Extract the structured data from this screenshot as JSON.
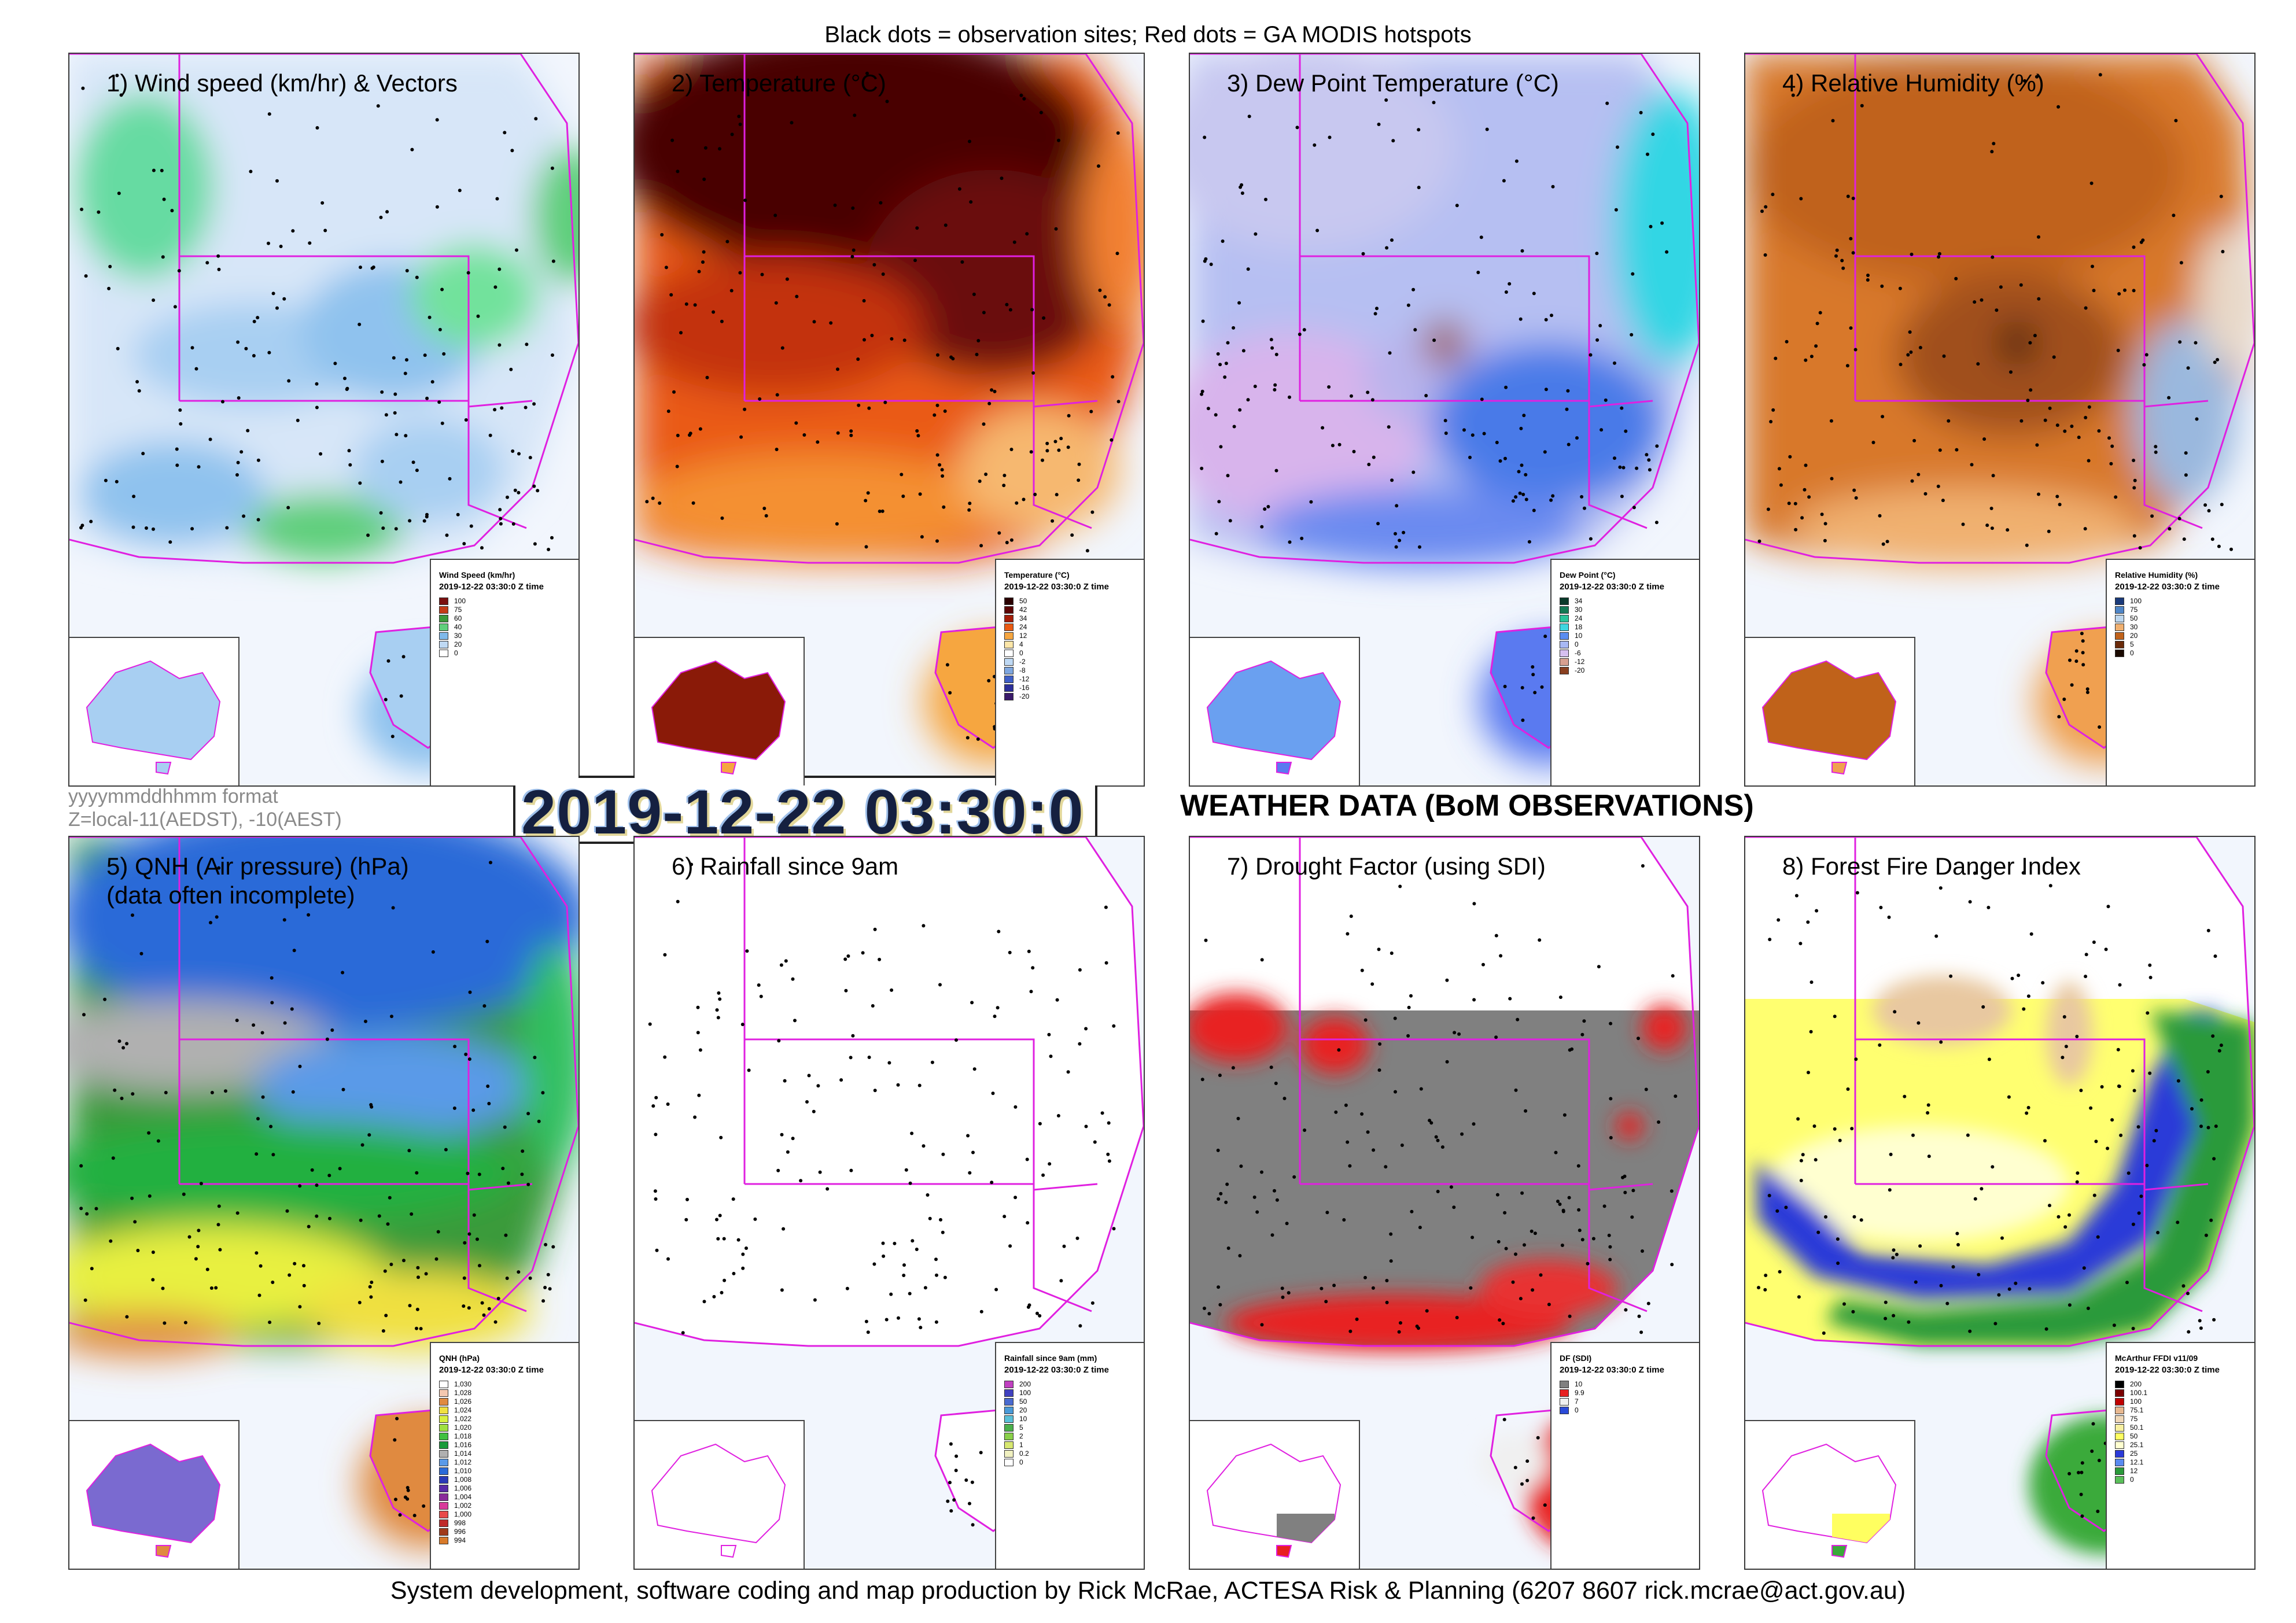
{
  "header": {
    "caption": "Black dots = observation sites; Red dots = GA MODIS hotspots"
  },
  "footer": {
    "credit": "System development, software coding and map production by Rick McRae, ACTESA Risk & Planning (6207 8607 rick.mcrae@act.gov.au)"
  },
  "datetime": {
    "value": "2019-12-22 03:30:0",
    "format_note": "yyyymmddhhmm format",
    "zone_note": "Z=local-11(AEDST), -10(AEST)"
  },
  "main_title": "WEATHER DATA (BoM OBSERVATIONS)",
  "colors": {
    "state_border": "#e020e0",
    "coast": "#e020e0",
    "site_dot": "#000000",
    "hotspot_dot": "#e00000"
  },
  "panels": [
    {
      "id": "wind",
      "title": "1) Wind speed (km/hr) & Vectors",
      "legend": {
        "title": "Wind Speed (km/hr)",
        "time": "2019-12-22 03:30:0 Z time",
        "items": [
          {
            "label": "100",
            "color": "#7a1010"
          },
          {
            "label": "75",
            "color": "#c43b18"
          },
          {
            "label": "60",
            "color": "#3a9a3a"
          },
          {
            "label": "40",
            "color": "#5fcf7c"
          },
          {
            "label": "30",
            "color": "#7fb9ea"
          },
          {
            "label": "20",
            "color": "#bfd9f4"
          },
          {
            "label": "0",
            "color": "#ffffff"
          }
        ]
      }
    },
    {
      "id": "temperature",
      "title": "2) Temperature (°C)",
      "legend": {
        "title": "Temperature (°C)",
        "time": "2019-12-22 03:30:0 Z time",
        "items": [
          {
            "label": "50",
            "color": "#2a0000"
          },
          {
            "label": "42",
            "color": "#5c0505"
          },
          {
            "label": "34",
            "color": "#a51d08"
          },
          {
            "label": "24",
            "color": "#ea5a12"
          },
          {
            "label": "12",
            "color": "#f6a640"
          },
          {
            "label": "4",
            "color": "#fde6a8"
          },
          {
            "label": "0",
            "color": "#ffffff"
          },
          {
            "label": "-2",
            "color": "#bfd9f4"
          },
          {
            "label": "-8",
            "color": "#7fa7e0"
          },
          {
            "label": "-12",
            "color": "#3f5fc8"
          },
          {
            "label": "-16",
            "color": "#2c2f9a"
          },
          {
            "label": "-20",
            "color": "#3a1a6a"
          }
        ]
      }
    },
    {
      "id": "dewpoint",
      "title": "3) Dew Point Temperature (°C)",
      "legend": {
        "title": "Dew Point (°C)",
        "time": "2019-12-22 03:30:0 Z time",
        "items": [
          {
            "label": "34",
            "color": "#0a3a2a"
          },
          {
            "label": "30",
            "color": "#127a54"
          },
          {
            "label": "24",
            "color": "#28c49a"
          },
          {
            "label": "18",
            "color": "#3fd6e0"
          },
          {
            "label": "10",
            "color": "#5a8df0"
          },
          {
            "label": "0",
            "color": "#a8b8f4"
          },
          {
            "label": "-6",
            "color": "#d6c0f0"
          },
          {
            "label": "-12",
            "color": "#d8a090"
          },
          {
            "label": "-20",
            "color": "#8a4020"
          }
        ]
      }
    },
    {
      "id": "rh",
      "title": "4) Relative Humidity (%)",
      "legend": {
        "title": "Relative Humidity (%)",
        "time": "2019-12-22 03:30:0 Z time",
        "items": [
          {
            "label": "100",
            "color": "#1a3a7a"
          },
          {
            "label": "75",
            "color": "#4f86c8"
          },
          {
            "label": "50",
            "color": "#bcd6ee"
          },
          {
            "label": "30",
            "color": "#f0b070"
          },
          {
            "label": "20",
            "color": "#c0621a"
          },
          {
            "label": "5",
            "color": "#6a2a0a"
          },
          {
            "label": "0",
            "color": "#1a0a00"
          }
        ]
      }
    },
    {
      "id": "qnh",
      "title": "5) QNH (Air pressure) (hPa)\n(data often incomplete)",
      "legend": {
        "title": "QNH (hPa)",
        "time": "2019-12-22 03:30:0 Z time",
        "items": [
          {
            "label": "1,030",
            "color": "#ffffff"
          },
          {
            "label": "1,028",
            "color": "#f4c8b0"
          },
          {
            "label": "1,026",
            "color": "#e08a40"
          },
          {
            "label": "1,024",
            "color": "#f0e040"
          },
          {
            "label": "1,022",
            "color": "#d8f040"
          },
          {
            "label": "1,020",
            "color": "#a0e040"
          },
          {
            "label": "1,018",
            "color": "#40c040"
          },
          {
            "label": "1,016",
            "color": "#1a9a3a"
          },
          {
            "label": "1,014",
            "color": "#b0b0b0"
          },
          {
            "label": "1,012",
            "color": "#5a9ae8"
          },
          {
            "label": "1,010",
            "color": "#2a6ad8"
          },
          {
            "label": "1,008",
            "color": "#2a3ab8"
          },
          {
            "label": "1,006",
            "color": "#5a2aa8"
          },
          {
            "label": "1,004",
            "color": "#8a2a9a"
          },
          {
            "label": "1,002",
            "color": "#d83a9a"
          },
          {
            "label": "1,000",
            "color": "#e84a4a"
          },
          {
            "label": "998",
            "color": "#c02a2a"
          },
          {
            "label": "996",
            "color": "#a03a1a"
          },
          {
            "label": "994",
            "color": "#d87a2a"
          }
        ]
      }
    },
    {
      "id": "rainfall",
      "title": "6) Rainfall since 9am",
      "legend": {
        "title": "Rainfall since 9am (mm)",
        "time": "2019-12-22 03:30:0 Z time",
        "items": [
          {
            "label": "200",
            "color": "#c040c0"
          },
          {
            "label": "100",
            "color": "#4040c0"
          },
          {
            "label": "50",
            "color": "#4a6ad0"
          },
          {
            "label": "20",
            "color": "#4a9ad8"
          },
          {
            "label": "10",
            "color": "#5ac0d8"
          },
          {
            "label": "5",
            "color": "#4ab04a"
          },
          {
            "label": "2",
            "color": "#8ad04a"
          },
          {
            "label": "1",
            "color": "#d8e870"
          },
          {
            "label": "0.2",
            "color": "#f0f0c0"
          },
          {
            "label": "0",
            "color": "#ffffff"
          }
        ]
      }
    },
    {
      "id": "drought",
      "title": "7) Drought Factor (using SDI)",
      "legend": {
        "title": "DF (SDI)",
        "time": "2019-12-22 03:30:0 Z time",
        "items": [
          {
            "label": "10",
            "color": "#808080"
          },
          {
            "label": "9.9",
            "color": "#e82020"
          },
          {
            "label": "7",
            "color": "#f0f0f0"
          },
          {
            "label": "0",
            "color": "#2a4ad8"
          }
        ]
      }
    },
    {
      "id": "ffdi",
      "title": "8) Forest Fire Danger Index",
      "legend": {
        "title": "McArthur FFDI v11/09",
        "time": "2019-12-22 03:30:0 Z time",
        "items": [
          {
            "label": "200",
            "color": "#000000"
          },
          {
            "label": "100.1",
            "color": "#7a0000"
          },
          {
            "label": "100",
            "color": "#c00000"
          },
          {
            "label": "75.1",
            "color": "#e8b890"
          },
          {
            "label": "75",
            "color": "#f0d8b8"
          },
          {
            "label": "50.1",
            "color": "#f8f0a0"
          },
          {
            "label": "50",
            "color": "#ffff60"
          },
          {
            "label": "25.1",
            "color": "#ffffd0"
          },
          {
            "label": "25",
            "color": "#2a3ad8"
          },
          {
            "label": "12.1",
            "color": "#5a8af0"
          },
          {
            "label": "12",
            "color": "#2a9a3a"
          },
          {
            "label": "0",
            "color": "#5ac05a"
          }
        ]
      }
    }
  ]
}
